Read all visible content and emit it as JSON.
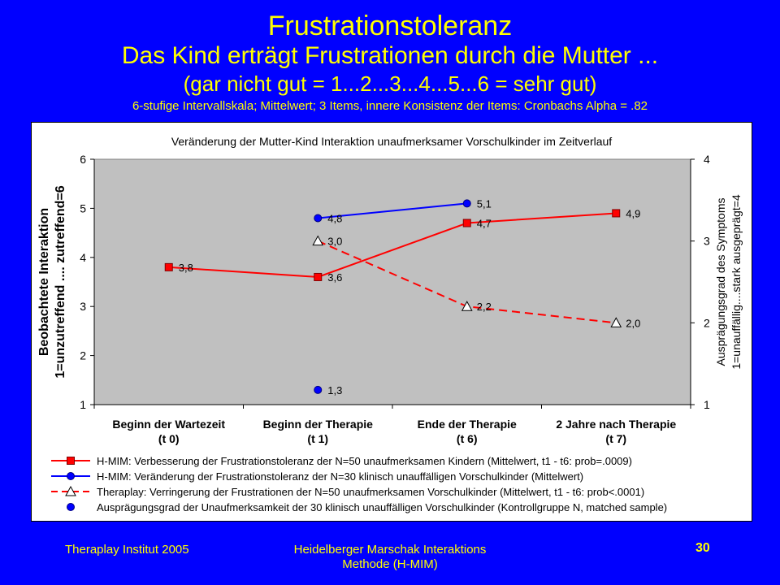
{
  "slide": {
    "title": "Frustrationstoleranz",
    "subtitle": "Das Kind erträgt Frustrationen durch die Mutter ...",
    "scale_text": "(gar nicht gut = 1...2...3...4...5...6 = sehr gut)",
    "method_note": "6-stufige Intervallskala; Mittelwert; 3 Items, innere Konsistenz der Items: Cronbachs Alpha = .82"
  },
  "footer": {
    "left": "Theraplay Institut 2005",
    "middle_line1": "Heidelberger Marschak Interaktions",
    "middle_line2": "Methode (H-MIM)",
    "page_number": "30"
  },
  "colors": {
    "background": "#0000ff",
    "text": "#ffff00",
    "plot_area": "#c0c0c0",
    "red": "#ff0000",
    "blue": "#0000ff"
  },
  "chart_data": {
    "type": "line",
    "title": "Veränderung der Mutter-Kind Interaktion unaufmerksamer Vorschulkinder im Zeitverlauf",
    "ylabel_line1": "Beobachtete Interaktion",
    "ylabel_line2": "1=unzutreffend .... zutreffend=6",
    "y2label_line1": "Ausprägungsgrad des Symptoms",
    "y2label_line2": "1=unauffällig....stark ausgeprägt=4",
    "ylim": [
      1,
      6
    ],
    "y2lim": [
      1,
      4
    ],
    "yticks": [
      "1",
      "2",
      "3",
      "4",
      "5",
      "6"
    ],
    "y2ticks": [
      "1",
      "2",
      "3",
      "4"
    ],
    "categories": [
      {
        "line1": "Beginn der Wartezeit",
        "line2": "(t 0)"
      },
      {
        "line1": "Beginn der Therapie",
        "line2": "(t 1)"
      },
      {
        "line1": "Ende der Therapie",
        "line2": "(t 6)"
      },
      {
        "line1": "2 Jahre nach Therapie",
        "line2": "(t 7)"
      }
    ],
    "grid": false,
    "legend_position": "bottom",
    "series": [
      {
        "name": "H-MIM: Verbesserung der Frustrationstoleranz der N=50 unaufmerksamen Kindern (Mittelwert, t1 - t6: prob=.0009)",
        "axis": "left",
        "color": "#ff0000",
        "marker": "square",
        "line": "solid",
        "values": [
          3.8,
          3.6,
          4.7,
          4.9
        ],
        "labels": [
          "3,8",
          "3,6",
          "4,7",
          "4,9"
        ]
      },
      {
        "name": "H-MIM: Veränderung der Frustrationstoleranz der N=30 klinisch unauffälligen Vorschulkinder (Mittelwert)",
        "axis": "left",
        "color": "#0000ff",
        "marker": "circle",
        "line": "solid",
        "values": [
          null,
          4.8,
          5.1,
          null
        ],
        "labels": [
          "",
          "4,8",
          "5,1",
          ""
        ]
      },
      {
        "name": "Theraplay: Verringerung der Frustrationen der N=50 unaufmerksamen Vorschulkinder (Mittelwert, t1 - t6: prob<.0001)",
        "axis": "right",
        "color": "#ff0000",
        "marker": "triangle",
        "line": "dashed",
        "values": [
          null,
          3.0,
          2.2,
          2.0
        ],
        "labels": [
          "",
          "3,0",
          "2,2",
          "2,0"
        ]
      },
      {
        "name": "Ausprägungsgrad der Unaufmerksamkeit der 30 klinisch unauffälligen Vorschulkinder (Kontrollgruppe N, matched sample)",
        "axis": "left",
        "color": "#0000ff",
        "marker": "circle",
        "line": "none",
        "values": [
          null,
          1.3,
          null,
          null
        ],
        "labels": [
          "",
          "1,3",
          "",
          ""
        ]
      }
    ]
  }
}
